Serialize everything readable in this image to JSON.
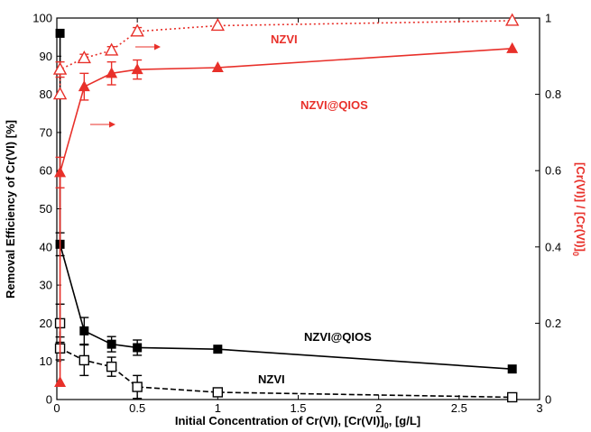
{
  "chart_data": {
    "type": "scatter",
    "xlabel_main": "Initial Concentration of Cr(VI), [Cr(VI)]",
    "xlabel_sub": "0",
    "xlabel_tail": " [g/L]",
    "ylabel_left": "Removal Efficiency of Cr(VI) [%]",
    "ylabel_right_main": "[Cr(VI)] / [Cr(VI)]",
    "ylabel_right_sub": "0",
    "xlim": [
      0,
      3
    ],
    "ylim_left": [
      0,
      100
    ],
    "ylim_right": [
      0,
      1
    ],
    "x_ticks": [
      "0",
      "0.5",
      "1",
      "1.5",
      "2",
      "2.5",
      "3"
    ],
    "y_left_ticks": [
      "0",
      "10",
      "20",
      "30",
      "40",
      "50",
      "60",
      "70",
      "80",
      "90",
      "100"
    ],
    "y_right_ticks": [
      "0",
      "0.2",
      "0.4",
      "0.6",
      "0.8",
      "1"
    ],
    "colors": {
      "black": "#000000",
      "red": "#e8302a"
    },
    "series": [
      {
        "name": "NZVI@QIOS",
        "axis": "left",
        "style": "solid",
        "marker": "filled-square",
        "color": "#000000",
        "x": [
          0.02,
          0.02,
          0.17,
          0.34,
          0.5,
          1.0,
          2.83
        ],
        "y": [
          96,
          40.7,
          18,
          14.5,
          13.6,
          13.2,
          8
        ],
        "err": [
          0,
          3,
          3.5,
          2,
          2,
          0,
          0
        ]
      },
      {
        "name": "NZVI",
        "axis": "left",
        "style": "dashed",
        "marker": "open-square",
        "color": "#000000",
        "x": [
          0.02,
          0.02,
          0.17,
          0.34,
          0.5,
          1.0,
          2.83
        ],
        "y": [
          20,
          13.4,
          10.3,
          8.6,
          3.3,
          1.9,
          0.6
        ],
        "err": [
          5,
          3,
          4,
          2.5,
          3,
          0.5,
          0
        ]
      },
      {
        "name": "NZVI@QIOS",
        "axis": "right",
        "style": "solid",
        "marker": "filled-triangle",
        "color": "#e8302a",
        "x": [
          0.02,
          0.02,
          0.17,
          0.34,
          0.5,
          1.0,
          2.83
        ],
        "y": [
          0.045,
          0.595,
          0.82,
          0.855,
          0.865,
          0.87,
          0.92
        ],
        "err": [
          0,
          0.04,
          0.035,
          0.03,
          0.025,
          0,
          0
        ]
      },
      {
        "name": "NZVI",
        "axis": "right",
        "style": "dotted",
        "marker": "open-triangle",
        "color": "#e8302a",
        "x": [
          0.02,
          0.02,
          0.17,
          0.34,
          0.5,
          1.0,
          2.83
        ],
        "y": [
          0.8,
          0.865,
          0.895,
          0.915,
          0.965,
          0.98,
          0.993
        ],
        "err": [
          0,
          0.02,
          0.01,
          0.01,
          0.01,
          0,
          0
        ]
      }
    ],
    "labels": {
      "nzvi_red": "NZVI",
      "nzvi_qios_red": "NZVI@QIOS",
      "nzvi_qios_black": "NZVI@QIOS",
      "nzvi_black": "NZVI"
    }
  }
}
